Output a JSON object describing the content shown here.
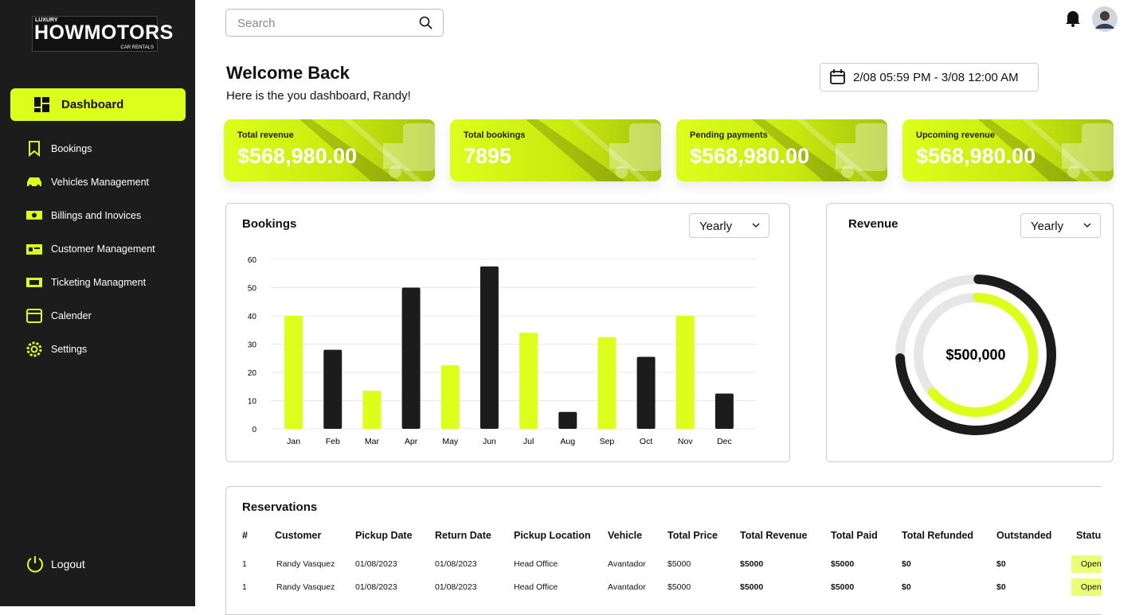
{
  "logo": {
    "top": "LUXURY",
    "name": "HOWMOTORS",
    "bottom": "CAR RENTALS"
  },
  "sidebar": {
    "active": "Dashboard",
    "items": [
      "Bookings",
      "Vehicles Management",
      "Billings and Inovices",
      "Customer Management",
      "Ticketing Managment",
      "Calender",
      "Settings"
    ],
    "logout": "Logout"
  },
  "search": {
    "placeholder": "Search"
  },
  "header": {
    "title": "Welcome Back",
    "subtitle": "Here is the you dashboard, Randy!",
    "date_range": "2/08 05:59 PM - 3/08 12:00 AM"
  },
  "stats": [
    {
      "label": "Total revenue",
      "value": "$568,980.00"
    },
    {
      "label": "Total bookings",
      "value": "7895"
    },
    {
      "label": "Pending payments",
      "value": "$568,980.00"
    },
    {
      "label": "Upcoming revenue",
      "value": "$568,980.00"
    }
  ],
  "chart_data": {
    "type": "bar",
    "title": "Bookings",
    "filter": "Yearly",
    "categories": [
      "Jan",
      "Feb",
      "Mar",
      "Apr",
      "May",
      "Jun",
      "Jul",
      "Aug",
      "Sep",
      "Oct",
      "Nov",
      "Dec"
    ],
    "values": [
      40,
      28,
      13.5,
      50,
      22.5,
      57.5,
      34,
      6,
      32.5,
      25.5,
      40,
      12.5
    ],
    "colors": [
      "#dcff1c",
      "#1c1c1c",
      "#dcff1c",
      "#1c1c1c",
      "#dcff1c",
      "#1c1c1c",
      "#dcff1c",
      "#1c1c1c",
      "#dcff1c",
      "#1c1c1c",
      "#dcff1c",
      "#1c1c1c"
    ],
    "ylim": [
      0,
      60
    ],
    "yticks": [
      0,
      10,
      20,
      30,
      40,
      50,
      60
    ],
    "grid": true
  },
  "revenue": {
    "title": "Revenue",
    "filter": "Yearly",
    "center_label": "$500,000"
  },
  "reservations": {
    "title": "Reservations",
    "columns": [
      "#",
      "Customer",
      "Pickup Date",
      "Return Date",
      "Pickup Location",
      "Vehicle",
      "Total Price",
      "Total Revenue",
      "Total Paid",
      "Total Refunded",
      "Outstanded",
      "Status"
    ],
    "rows": [
      [
        "1",
        "Randy Vasquez",
        "01/08/2023",
        "01/08/2023",
        "Head Office",
        "Avantador",
        "$5000",
        "$5000",
        "$5000",
        "$0",
        "$0",
        "Open"
      ],
      [
        "1",
        "Randy Vasquez",
        "01/08/2023",
        "01/08/2023",
        "Head Office",
        "Avantador",
        "$5000",
        "$5000",
        "$5000",
        "$0",
        "$0",
        "Open"
      ]
    ]
  }
}
